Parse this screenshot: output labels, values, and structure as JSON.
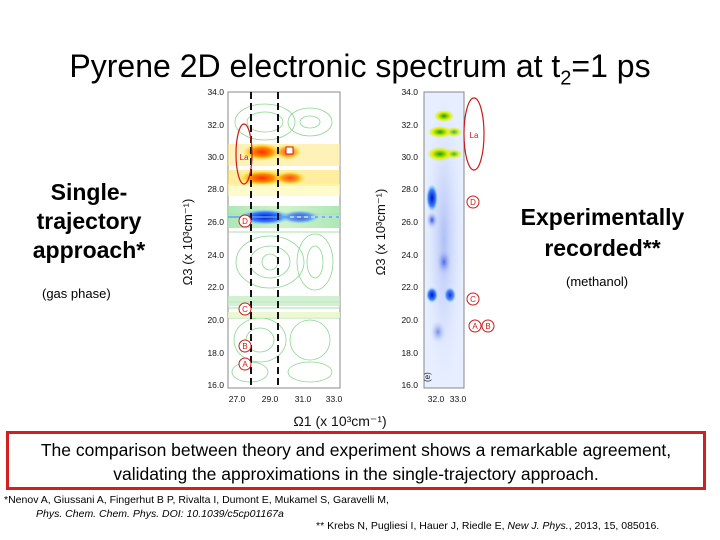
{
  "slide": {
    "title_main": "Pyrene 2D electronic spectrum at t",
    "title_sub": "2",
    "title_tail": "=1 ps",
    "left_label": {
      "line1": "Single-",
      "line2": "trajectory",
      "line3": "approach*",
      "note": "(gas phase)"
    },
    "right_label": {
      "line1": "Experimentally",
      "line2": "recorded**",
      "note": "(methanol)"
    },
    "conclusion": "The comparison between theory and experiment shows a remarkable agreement, validating the approximations in the single-trajectory approach.",
    "ref1_line1": "*Nenov A, Giussani A, Fingerhut B P, Rivalta I, Dumont E, Mukamel S, Garavelli M,",
    "ref1_line2": "Phys. Chem. Chem. Phys. DOI: 10.1039/c5cp01167a",
    "ref2_authors": "** Krebs N, Pugliesi I, Hauer J, Riedle E, ",
    "ref2_journal": "New J. Phys.",
    "ref2_tail": ", 2013, 15, 085016."
  },
  "figure": {
    "y_axis_label": "Ω3 (x 10³cm⁻¹)",
    "x_axis_label": "Ω1 (x 10³cm⁻¹)",
    "left_y_ticks": [
      "34.0",
      "32.0",
      "30.0",
      "28.0",
      "26.0",
      "24.0",
      "22.0",
      "20.0",
      "18.0",
      "16.0"
    ],
    "left_x_ticks": [
      "27.0",
      "29.0",
      "31.0",
      "33.0"
    ],
    "right_y_ticks": [
      "34.0",
      "32.0",
      "30.0",
      "28.0",
      "26.0",
      "24.0",
      "22.0",
      "20.0",
      "18.0",
      "16.0"
    ],
    "right_x_ticks": [
      "32.0",
      "33.0"
    ],
    "left_markers": {
      "la": "La",
      "d": "D",
      "c": "C",
      "b": "B",
      "a": "A"
    },
    "right_markers": {
      "la": "La",
      "d": "D",
      "c": "C",
      "a": "A",
      "b": "B"
    },
    "panel_tag": "(e)"
  }
}
